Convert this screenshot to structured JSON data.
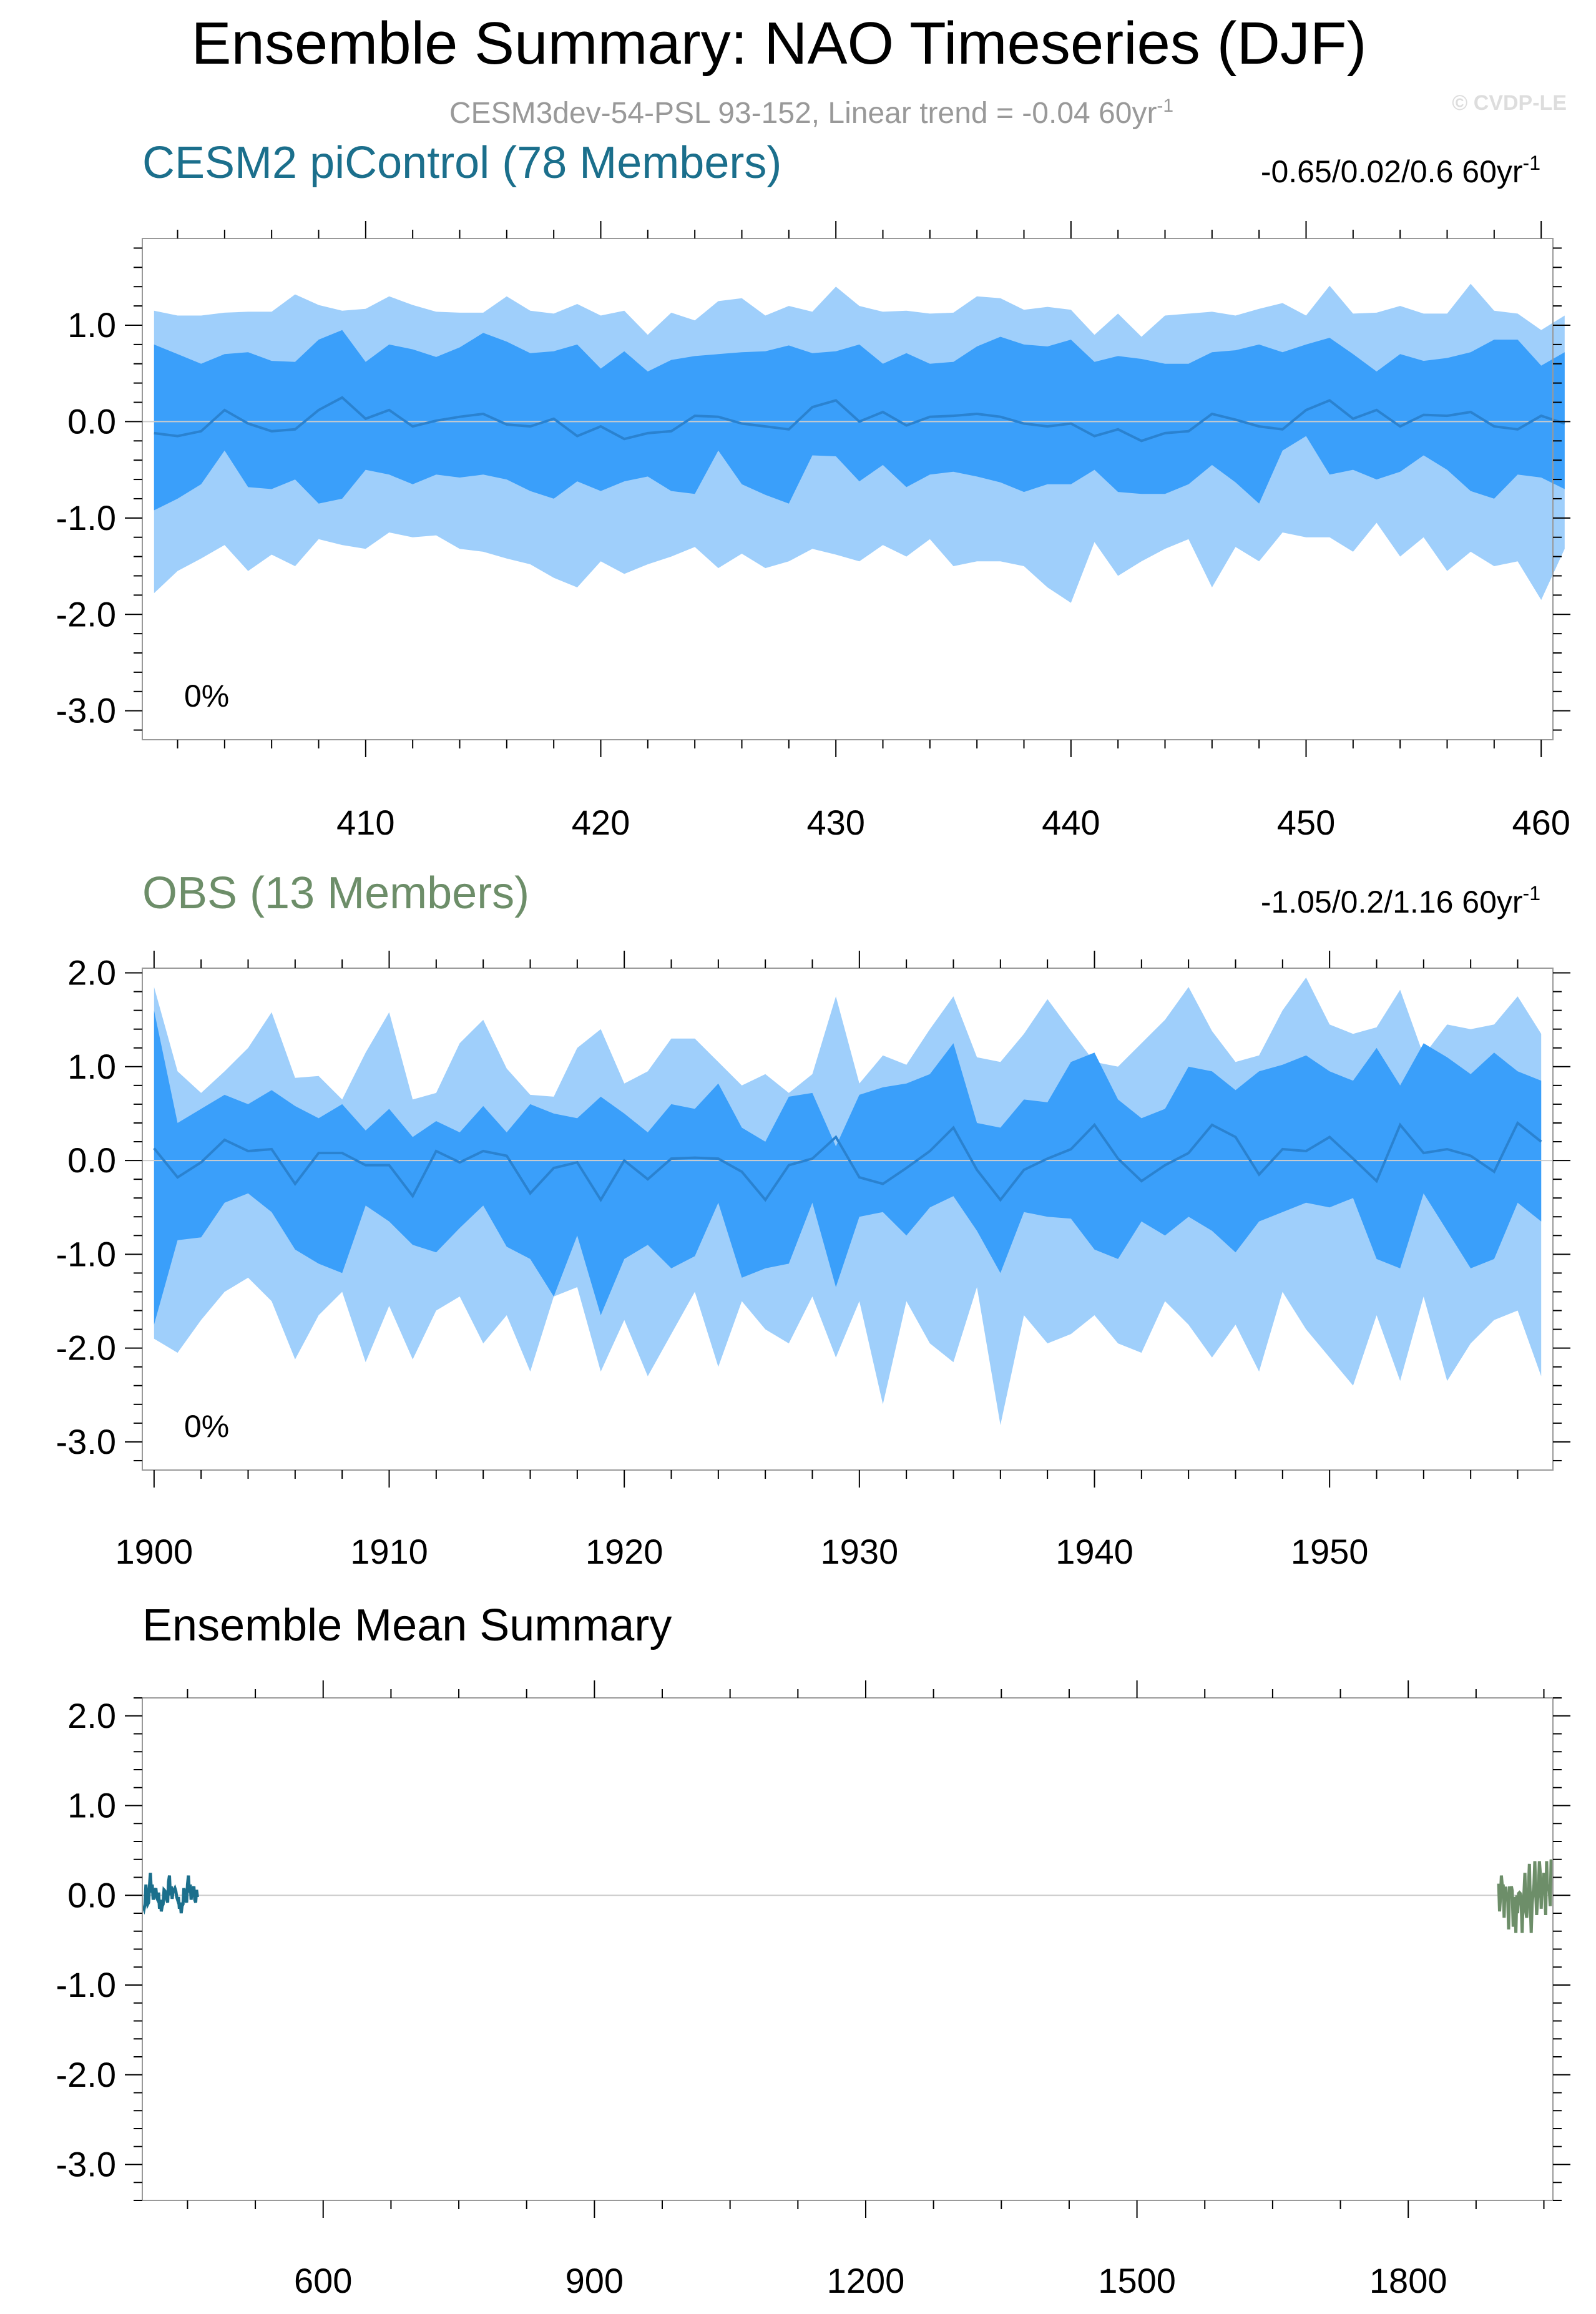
{
  "title": "Ensemble Summary: NAO Timeseries (DJF)",
  "subtitle": "CESM3dev-54-PSL 93-152, Linear trend = -0.04 60yr",
  "subtitle_sup": "-1",
  "watermark": "© CVDP-LE",
  "colors": {
    "band_outer": "#9fcffb",
    "band_inner": "#3a9ffa",
    "mean_line": "#2a82d0",
    "cesm": "#1b6f8c",
    "obs": "#6d8e69",
    "zero_line": "#cccccc",
    "frame": "#999999"
  },
  "chart_data": [
    {
      "type": "area",
      "name": "cesm2-picontrol",
      "title": "CESM2 piControl (78 Members)",
      "title_color": "#1b6f8c",
      "trend_text": "-0.65/0.02/0.6 60yr",
      "trend_sup": "-1",
      "percent_label": "0%",
      "x_start": 401,
      "xlim": [
        400.5,
        460.5
      ],
      "ylim": [
        -3.3,
        1.9
      ],
      "xticks": [
        410,
        420,
        430,
        440,
        450,
        460
      ],
      "xtick_labels": [
        "410",
        "420",
        "430",
        "440",
        "450",
        "460"
      ],
      "yticks": [
        1.0,
        0.0,
        -1.0,
        -2.0,
        -3.0
      ],
      "ytick_labels": [
        "1.0",
        "0.0",
        "-1.0",
        "-2.0",
        "-3.0"
      ],
      "series": [
        {
          "name": "max",
          "values": [
            1.15,
            1.1,
            1.1,
            1.13,
            1.14,
            1.14,
            1.32,
            1.21,
            1.15,
            1.17,
            1.3,
            1.21,
            1.14,
            1.13,
            1.13,
            1.3,
            1.15,
            1.12,
            1.22,
            1.1,
            1.15,
            0.9,
            1.13,
            1.05,
            1.25,
            1.28,
            1.1,
            1.2,
            1.14,
            1.4,
            1.2,
            1.14,
            1.15,
            1.12,
            1.13,
            1.3,
            1.28,
            1.16,
            1.19,
            1.16,
            0.9,
            1.12,
            0.88,
            1.1,
            1.12,
            1.14,
            1.1,
            1.17,
            1.23,
            1.1,
            1.41,
            1.12,
            1.13,
            1.2,
            1.12,
            1.12,
            1.43,
            1.15,
            1.12,
            0.95,
            1.1
          ]
        },
        {
          "name": "p84",
          "values": [
            0.8,
            0.7,
            0.6,
            0.7,
            0.72,
            0.63,
            0.62,
            0.85,
            0.95,
            0.62,
            0.8,
            0.75,
            0.67,
            0.77,
            0.92,
            0.83,
            0.71,
            0.73,
            0.8,
            0.55,
            0.73,
            0.52,
            0.64,
            0.68,
            0.7,
            0.72,
            0.73,
            0.79,
            0.71,
            0.73,
            0.8,
            0.6,
            0.71,
            0.6,
            0.62,
            0.78,
            0.88,
            0.8,
            0.78,
            0.85,
            0.62,
            0.68,
            0.65,
            0.6,
            0.6,
            0.72,
            0.74,
            0.8,
            0.72,
            0.8,
            0.87,
            0.7,
            0.52,
            0.7,
            0.63,
            0.66,
            0.72,
            0.85,
            0.85,
            0.58,
            0.72
          ]
        },
        {
          "name": "mean",
          "values": [
            -0.12,
            -0.15,
            -0.1,
            0.12,
            -0.02,
            -0.1,
            -0.08,
            0.12,
            0.25,
            0.03,
            0.12,
            -0.05,
            0.01,
            0.05,
            0.08,
            -0.03,
            -0.05,
            0.03,
            -0.15,
            -0.05,
            -0.18,
            -0.12,
            -0.1,
            0.06,
            0.05,
            -0.02,
            -0.05,
            -0.08,
            0.15,
            0.22,
            0.0,
            0.1,
            -0.04,
            0.05,
            0.06,
            0.08,
            0.05,
            -0.02,
            -0.05,
            -0.02,
            -0.15,
            -0.08,
            -0.2,
            -0.12,
            -0.1,
            0.08,
            0.02,
            -0.05,
            -0.08,
            0.12,
            0.22,
            0.03,
            0.12,
            -0.05,
            0.07,
            0.06,
            0.1,
            -0.05,
            -0.08,
            0.06,
            -0.02
          ]
        },
        {
          "name": "p16",
          "values": [
            -0.92,
            -0.8,
            -0.65,
            -0.3,
            -0.68,
            -0.7,
            -0.6,
            -0.85,
            -0.8,
            -0.5,
            -0.55,
            -0.65,
            -0.55,
            -0.58,
            -0.55,
            -0.6,
            -0.72,
            -0.8,
            -0.62,
            -0.72,
            -0.62,
            -0.57,
            -0.72,
            -0.75,
            -0.3,
            -0.65,
            -0.76,
            -0.85,
            -0.35,
            -0.36,
            -0.62,
            -0.45,
            -0.68,
            -0.55,
            -0.52,
            -0.57,
            -0.63,
            -0.73,
            -0.65,
            -0.65,
            -0.5,
            -0.73,
            -0.75,
            -0.75,
            -0.65,
            -0.45,
            -0.63,
            -0.85,
            -0.3,
            -0.15,
            -0.55,
            -0.5,
            -0.6,
            -0.52,
            -0.35,
            -0.5,
            -0.72,
            -0.8,
            -0.55,
            -0.58,
            -0.7
          ]
        },
        {
          "name": "min",
          "values": [
            -1.78,
            -1.55,
            -1.42,
            -1.28,
            -1.55,
            -1.38,
            -1.5,
            -1.22,
            -1.28,
            -1.32,
            -1.15,
            -1.2,
            -1.18,
            -1.32,
            -1.35,
            -1.42,
            -1.48,
            -1.62,
            -1.72,
            -1.45,
            -1.58,
            -1.48,
            -1.4,
            -1.3,
            -1.52,
            -1.37,
            -1.52,
            -1.45,
            -1.32,
            -1.38,
            -1.45,
            -1.28,
            -1.4,
            -1.22,
            -1.5,
            -1.45,
            -1.45,
            -1.5,
            -1.72,
            -1.88,
            -1.25,
            -1.6,
            -1.45,
            -1.32,
            -1.22,
            -1.72,
            -1.3,
            -1.45,
            -1.15,
            -1.2,
            -1.2,
            -1.35,
            -1.05,
            -1.4,
            -1.2,
            -1.55,
            -1.35,
            -1.5,
            -1.45,
            -1.85,
            -1.32
          ]
        }
      ]
    },
    {
      "type": "area",
      "name": "obs",
      "title": "OBS (13 Members)",
      "title_color": "#6d8e69",
      "trend_text": "-1.05/0.2/1.16 60yr",
      "trend_sup": "-1",
      "percent_label": "0%",
      "x_start": 1900,
      "xlim": [
        1899.5,
        1959.5
      ],
      "ylim": [
        -3.3,
        2.05
      ],
      "xticks": [
        1900,
        1910,
        1920,
        1930,
        1940,
        1950
      ],
      "xtick_labels": [
        "1900",
        "1910",
        "1920",
        "1930",
        "1940",
        "1950"
      ],
      "yticks": [
        2.0,
        1.0,
        0.0,
        -1.0,
        -2.0,
        -3.0
      ],
      "ytick_labels": [
        "2.0",
        "1.0",
        "0.0",
        "-1.0",
        "-2.0",
        "-3.0"
      ],
      "series": [
        {
          "name": "max",
          "values": [
            1.85,
            0.95,
            0.72,
            0.95,
            1.2,
            1.58,
            0.88,
            0.9,
            0.65,
            1.15,
            1.58,
            0.65,
            0.72,
            1.25,
            1.5,
            0.98,
            0.7,
            0.68,
            1.2,
            1.4,
            0.82,
            0.95,
            1.3,
            1.3,
            1.05,
            0.8,
            0.92,
            0.72,
            0.92,
            1.75,
            0.82,
            1.12,
            1.02,
            1.4,
            1.75,
            1.1,
            1.05,
            1.35,
            1.72,
            1.38,
            1.05,
            1.0,
            1.25,
            1.5,
            1.85,
            1.38,
            1.05,
            1.12,
            1.6,
            1.95,
            1.45,
            1.35,
            1.42,
            1.82,
            1.12,
            1.45,
            1.4,
            1.45,
            1.75,
            1.35
          ]
        },
        {
          "name": "p84",
          "values": [
            1.6,
            0.4,
            0.55,
            0.7,
            0.6,
            0.75,
            0.58,
            0.45,
            0.6,
            0.32,
            0.55,
            0.25,
            0.42,
            0.3,
            0.58,
            0.3,
            0.6,
            0.5,
            0.45,
            0.68,
            0.5,
            0.3,
            0.6,
            0.55,
            0.82,
            0.35,
            0.2,
            0.68,
            0.72,
            0.15,
            0.7,
            0.78,
            0.82,
            0.92,
            1.25,
            0.4,
            0.35,
            0.65,
            0.62,
            1.05,
            1.15,
            0.65,
            0.45,
            0.55,
            1.0,
            0.95,
            0.75,
            0.95,
            1.02,
            1.12,
            0.95,
            0.85,
            1.2,
            0.8,
            1.25,
            1.1,
            0.92,
            1.15,
            0.95,
            0.85
          ]
        },
        {
          "name": "mean",
          "values": [
            0.13,
            -0.18,
            -0.02,
            0.22,
            0.1,
            0.12,
            -0.25,
            0.08,
            0.08,
            -0.05,
            -0.05,
            -0.38,
            0.1,
            -0.02,
            0.1,
            0.05,
            -0.35,
            -0.08,
            -0.02,
            -0.42,
            0.0,
            -0.2,
            0.02,
            0.03,
            0.02,
            -0.12,
            -0.42,
            -0.05,
            0.02,
            0.25,
            -0.18,
            -0.25,
            -0.08,
            0.1,
            0.35,
            -0.1,
            -0.42,
            -0.1,
            0.02,
            0.12,
            0.38,
            0.02,
            -0.22,
            -0.05,
            0.08,
            0.38,
            0.25,
            -0.15,
            0.12,
            0.1,
            0.25,
            0.02,
            -0.22,
            0.38,
            0.08,
            0.12,
            0.05,
            -0.12,
            0.4,
            0.2
          ]
        },
        {
          "name": "p16",
          "values": [
            -1.75,
            -0.85,
            -0.82,
            -0.45,
            -0.35,
            -0.55,
            -0.95,
            -1.1,
            -1.2,
            -0.48,
            -0.65,
            -0.9,
            -0.98,
            -0.72,
            -0.48,
            -0.92,
            -1.05,
            -1.45,
            -0.8,
            -1.65,
            -1.05,
            -0.9,
            -1.15,
            -1.02,
            -0.45,
            -1.25,
            -1.15,
            -1.1,
            -0.45,
            -1.35,
            -0.6,
            -0.55,
            -0.8,
            -0.5,
            -0.38,
            -0.75,
            -1.2,
            -0.55,
            -0.6,
            -0.62,
            -0.95,
            -1.05,
            -0.65,
            -0.8,
            -0.6,
            -0.75,
            -0.98,
            -0.65,
            -0.55,
            -0.45,
            -0.5,
            -0.4,
            -1.05,
            -1.15,
            -0.35,
            -0.75,
            -1.15,
            -1.05,
            -0.45,
            -0.65
          ]
        },
        {
          "name": "min",
          "values": [
            -1.9,
            -2.05,
            -1.7,
            -1.4,
            -1.25,
            -1.5,
            -2.12,
            -1.65,
            -1.4,
            -2.15,
            -1.55,
            -2.12,
            -1.6,
            -1.45,
            -1.95,
            -1.65,
            -2.25,
            -1.45,
            -1.35,
            -2.25,
            -1.7,
            -2.3,
            -1.85,
            -1.4,
            -2.2,
            -1.5,
            -1.8,
            -1.95,
            -1.45,
            -2.1,
            -1.5,
            -2.6,
            -1.5,
            -1.95,
            -2.15,
            -1.35,
            -2.82,
            -1.65,
            -1.95,
            -1.85,
            -1.65,
            -1.95,
            -2.05,
            -1.5,
            -1.75,
            -2.1,
            -1.75,
            -2.25,
            -1.4,
            -1.8,
            -2.1,
            -2.4,
            -1.65,
            -2.35,
            -1.45,
            -2.35,
            -1.95,
            -1.7,
            -1.6,
            -2.3
          ]
        }
      ]
    },
    {
      "type": "line",
      "name": "ensemble-mean",
      "title": "Ensemble Mean Summary",
      "xlim": [
        400,
        1960
      ],
      "ylim": [
        -3.4,
        2.2
      ],
      "xticks": [
        600,
        900,
        1200,
        1500,
        1800
      ],
      "xtick_labels": [
        "600",
        "900",
        "1200",
        "1500",
        "1800"
      ],
      "yticks": [
        2.0,
        1.0,
        0.0,
        -1.0,
        -2.0,
        -3.0
      ],
      "ytick_labels": [
        "2.0",
        "1.0",
        "0.0",
        "-1.0",
        "-2.0",
        "-3.0"
      ],
      "series": [
        {
          "name": "CESM2 piControl",
          "color": "#1b6f8c",
          "x_start": 401,
          "values": [
            -0.12,
            -0.15,
            -0.1,
            0.12,
            -0.02,
            -0.1,
            -0.08,
            0.12,
            0.25,
            0.03,
            0.12,
            -0.05,
            0.01,
            0.05,
            0.08,
            -0.03,
            -0.05,
            0.03,
            -0.15,
            -0.05,
            -0.18,
            -0.12,
            -0.1,
            0.06,
            0.05,
            -0.02,
            -0.05,
            -0.08,
            0.15,
            0.22,
            0.0,
            0.1,
            -0.04,
            0.05,
            0.06,
            0.08,
            0.05,
            -0.02,
            -0.05,
            -0.02,
            -0.15,
            -0.08,
            -0.2,
            -0.12,
            -0.1,
            0.08,
            0.02,
            -0.05,
            -0.08,
            0.12,
            0.22,
            0.03,
            0.12,
            -0.05,
            0.07,
            0.06,
            0.1,
            -0.05,
            -0.08,
            0.06,
            -0.02
          ]
        },
        {
          "name": "OBS",
          "color": "#6d8e69",
          "x_start": 1900,
          "values": [
            0.13,
            -0.18,
            -0.02,
            0.22,
            0.1,
            0.12,
            -0.25,
            0.08,
            0.08,
            -0.05,
            -0.05,
            -0.38,
            0.1,
            -0.02,
            0.1,
            0.05,
            -0.35,
            -0.08,
            -0.02,
            -0.42,
            0.0,
            -0.2,
            0.02,
            0.03,
            0.02,
            -0.12,
            -0.42,
            -0.05,
            0.02,
            0.25,
            -0.18,
            -0.25,
            -0.08,
            0.1,
            0.35,
            -0.1,
            -0.42,
            -0.1,
            0.02,
            0.12,
            0.38,
            0.02,
            -0.22,
            -0.05,
            0.08,
            0.38,
            0.25,
            -0.15,
            0.12,
            0.1,
            0.25,
            0.02,
            -0.22,
            0.38,
            0.08,
            0.12,
            0.05,
            -0.12,
            0.4,
            0.2
          ]
        }
      ]
    }
  ]
}
